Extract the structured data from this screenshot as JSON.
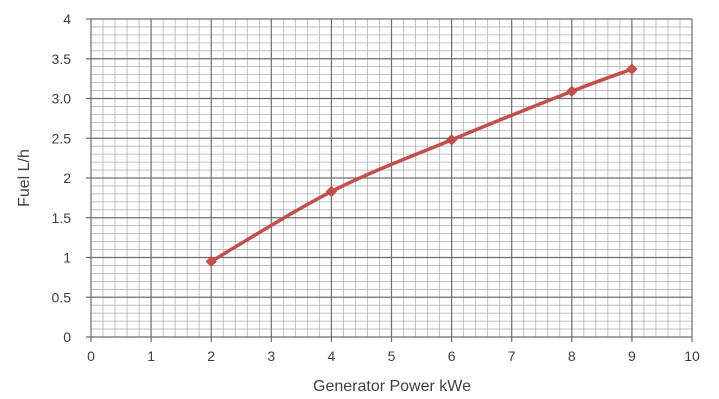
{
  "chart_data": {
    "type": "line",
    "title": "",
    "xlabel": "Generator Power kWe",
    "ylabel": "Fuel  L/h",
    "xlim": [
      0,
      10
    ],
    "ylim": [
      0,
      4
    ],
    "x_ticks": [
      {
        "value": 0,
        "label": "0"
      },
      {
        "value": 1,
        "label": "1"
      },
      {
        "value": 2,
        "label": "2"
      },
      {
        "value": 3,
        "label": "3"
      },
      {
        "value": 4,
        "label": "4"
      },
      {
        "value": 5,
        "label": "5"
      },
      {
        "value": 6,
        "label": "6"
      },
      {
        "value": 7,
        "label": "7"
      },
      {
        "value": 8,
        "label": "8"
      },
      {
        "value": 9,
        "label": "9"
      },
      {
        "value": 10,
        "label": "10"
      }
    ],
    "y_ticks": [
      {
        "value": 0,
        "label": "0"
      },
      {
        "value": 0.5,
        "label": "0.5"
      },
      {
        "value": 1,
        "label": "1"
      },
      {
        "value": 1.5,
        "label": "1.5"
      },
      {
        "value": 2,
        "label": "2"
      },
      {
        "value": 2.5,
        "label": "2.5"
      },
      {
        "value": 3,
        "label": "3.0"
      },
      {
        "value": 3.5,
        "label": "3.5"
      },
      {
        "value": 4,
        "label": "4"
      }
    ],
    "grid": true,
    "minor_grid_x_per_major": 5,
    "minor_grid_y_per_major": 5,
    "series": [
      {
        "color": "#C0504D",
        "marker": "diamond",
        "x": [
          2,
          4,
          6,
          8,
          9
        ],
        "y": [
          0.95,
          1.83,
          2.48,
          3.09,
          3.37
        ]
      }
    ]
  }
}
